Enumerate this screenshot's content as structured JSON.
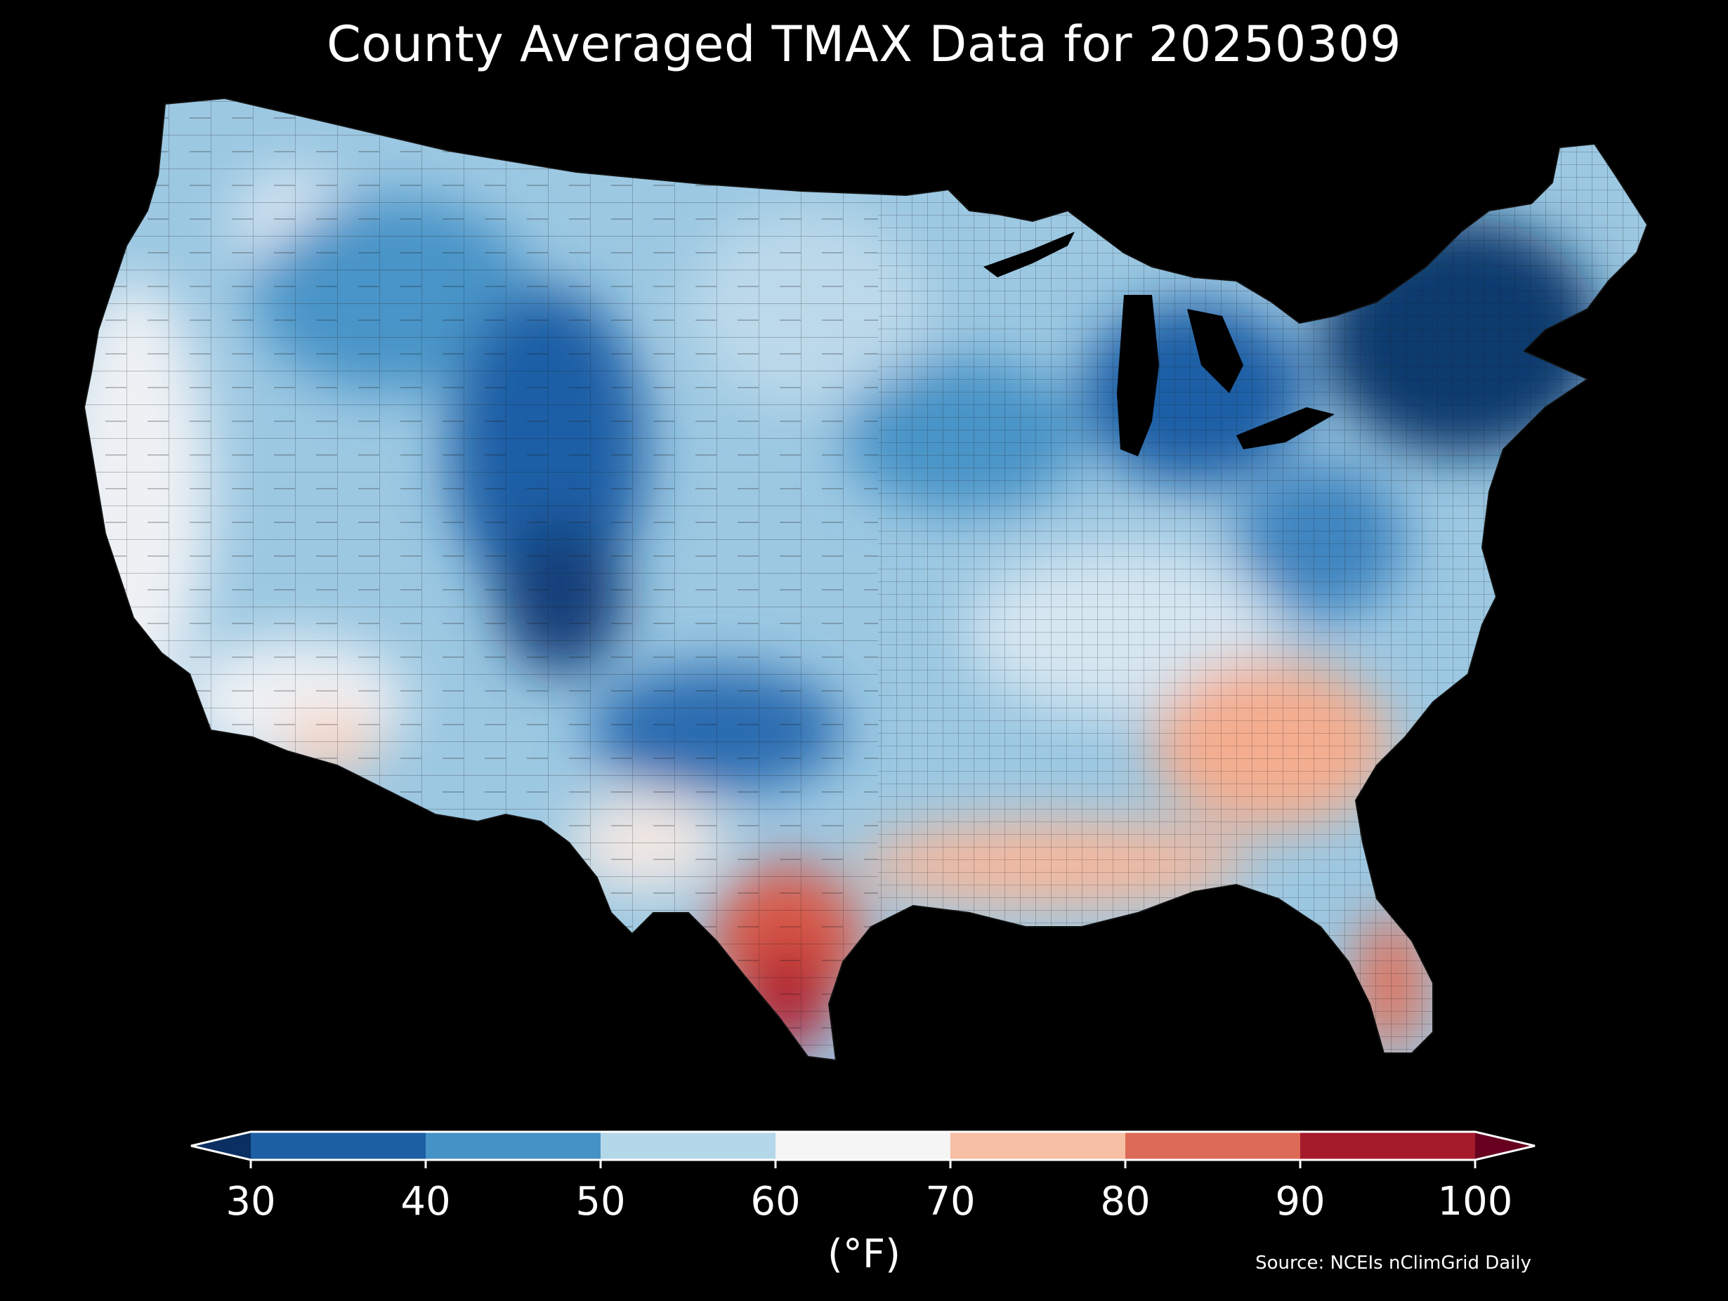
{
  "title": "County Averaged TMAX Data for 20250309",
  "colorbar": {
    "label": "(°F)",
    "ticks": [
      "30",
      "40",
      "50",
      "60",
      "70",
      "80",
      "90",
      "100"
    ],
    "bins": [
      {
        "from": 30,
        "to": 40,
        "color": "#1d5fa3"
      },
      {
        "from": 40,
        "to": 50,
        "color": "#4592c6"
      },
      {
        "from": 50,
        "to": 60,
        "color": "#b5d7ea"
      },
      {
        "from": 60,
        "to": 70,
        "color": "#f5f5f5"
      },
      {
        "from": 70,
        "to": 80,
        "color": "#f7bfa3"
      },
      {
        "from": 80,
        "to": 90,
        "color": "#dc6a56"
      },
      {
        "from": 90,
        "to": 100,
        "color": "#a51b2c"
      }
    ],
    "under_color": "#0b2f62",
    "over_color": "#67001f"
  },
  "source": "Source: NCEIs nClimGrid Daily",
  "map_colors": {
    "land_base": "#9cc8e2",
    "far_north_east": "#0d3a6e",
    "cold_core": "#1f5ea6",
    "cool": "#4a94c8",
    "mild": "#bcd9ea",
    "neutral": "#eef1f4",
    "warm": "#f4ad8f",
    "hot": "#d95a48",
    "very_hot": "#b01e2f",
    "background": "#000000"
  }
}
